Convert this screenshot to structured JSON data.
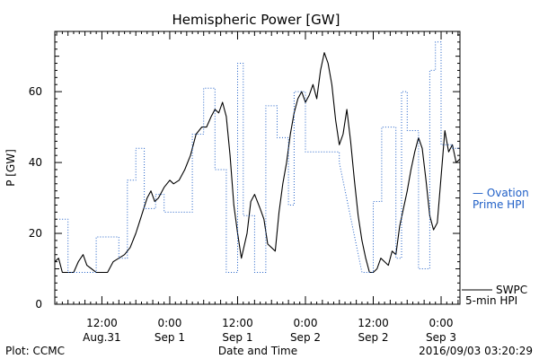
{
  "chart_data": {
    "type": "line",
    "title": "Hemispheric Power [GW]",
    "xlabel": "Date and Time",
    "ylabel": "P [GW]",
    "ylim": [
      0,
      77
    ],
    "y_ticks": [
      0,
      20,
      40,
      60
    ],
    "x_ticks": [
      {
        "time": "2016-08-31 12:00",
        "label": "12:00",
        "date": "Aug.31"
      },
      {
        "time": "2016-09-01 00:00",
        "label": "0:00",
        "date": "Sep 1"
      },
      {
        "time": "2016-09-01 12:00",
        "label": "12:00",
        "date": "Sep 1"
      },
      {
        "time": "2016-09-02 00:00",
        "label": "0:00",
        "date": "Sep 2"
      },
      {
        "time": "2016-09-02 12:00",
        "label": "12:00",
        "date": "Sep 2"
      },
      {
        "time": "2016-09-03 00:00",
        "label": "0:00",
        "date": "Sep 3"
      }
    ],
    "x_range": [
      "2016-08-31 03:40",
      "2016-09-03 03:20"
    ],
    "grid": false,
    "legend_placement": "right",
    "series": [
      {
        "name": "SWPC 5-min HPI",
        "legend_lines": [
          "SWPC",
          "5-min HPI"
        ],
        "color": "#000000",
        "style": "solid",
        "points": [
          [
            "2016-08-31 03:40",
            12
          ],
          [
            "2016-08-31 04:20",
            13
          ],
          [
            "2016-08-31 05:00",
            9
          ],
          [
            "2016-08-31 06:00",
            9
          ],
          [
            "2016-08-31 07:00",
            9
          ],
          [
            "2016-08-31 07:50",
            12
          ],
          [
            "2016-08-31 08:40",
            14
          ],
          [
            "2016-08-31 09:20",
            11
          ],
          [
            "2016-08-31 10:10",
            10
          ],
          [
            "2016-08-31 11:00",
            9
          ],
          [
            "2016-08-31 12:00",
            9
          ],
          [
            "2016-08-31 13:00",
            9
          ],
          [
            "2016-08-31 14:00",
            12
          ],
          [
            "2016-08-31 15:00",
            13
          ],
          [
            "2016-08-31 16:00",
            14
          ],
          [
            "2016-08-31 17:00",
            16
          ],
          [
            "2016-08-31 18:00",
            20
          ],
          [
            "2016-08-31 19:00",
            25
          ],
          [
            "2016-08-31 20:00",
            30
          ],
          [
            "2016-08-31 20:40",
            32
          ],
          [
            "2016-08-31 21:20",
            29
          ],
          [
            "2016-08-31 22:00",
            30
          ],
          [
            "2016-08-31 23:00",
            33
          ],
          [
            "2016-09-01 00:00",
            35
          ],
          [
            "2016-09-01 00:40",
            34
          ],
          [
            "2016-09-01 01:40",
            35
          ],
          [
            "2016-09-01 02:40",
            38
          ],
          [
            "2016-09-01 03:40",
            42
          ],
          [
            "2016-09-01 04:40",
            48
          ],
          [
            "2016-09-01 05:40",
            50
          ],
          [
            "2016-09-01 06:30",
            50
          ],
          [
            "2016-09-01 07:20",
            53
          ],
          [
            "2016-09-01 08:00",
            55
          ],
          [
            "2016-09-01 08:40",
            54
          ],
          [
            "2016-09-01 09:20",
            57
          ],
          [
            "2016-09-01 10:00",
            53
          ],
          [
            "2016-09-01 10:40",
            42
          ],
          [
            "2016-09-01 11:20",
            28
          ],
          [
            "2016-09-01 12:00",
            20
          ],
          [
            "2016-09-01 12:40",
            13
          ],
          [
            "2016-09-01 13:40",
            20
          ],
          [
            "2016-09-01 14:20",
            29
          ],
          [
            "2016-09-01 15:00",
            31
          ],
          [
            "2016-09-01 16:00",
            27
          ],
          [
            "2016-09-01 16:40",
            24
          ],
          [
            "2016-09-01 17:20",
            17
          ],
          [
            "2016-09-01 18:00",
            16
          ],
          [
            "2016-09-01 18:40",
            15
          ],
          [
            "2016-09-01 19:20",
            26
          ],
          [
            "2016-09-01 20:00",
            34
          ],
          [
            "2016-09-01 20:40",
            40
          ],
          [
            "2016-09-01 21:20",
            48
          ],
          [
            "2016-09-01 22:00",
            54
          ],
          [
            "2016-09-01 22:40",
            58
          ],
          [
            "2016-09-01 23:20",
            60
          ],
          [
            "2016-09-02 00:00",
            57
          ],
          [
            "2016-09-02 00:40",
            59
          ],
          [
            "2016-09-02 01:20",
            62
          ],
          [
            "2016-09-02 02:00",
            58
          ],
          [
            "2016-09-02 02:40",
            66
          ],
          [
            "2016-09-02 03:20",
            71
          ],
          [
            "2016-09-02 04:00",
            68
          ],
          [
            "2016-09-02 04:40",
            62
          ],
          [
            "2016-09-02 05:20",
            52
          ],
          [
            "2016-09-02 06:00",
            45
          ],
          [
            "2016-09-02 06:40",
            48
          ],
          [
            "2016-09-02 07:20",
            55
          ],
          [
            "2016-09-02 08:00",
            46
          ],
          [
            "2016-09-02 08:40",
            35
          ],
          [
            "2016-09-02 09:20",
            25
          ],
          [
            "2016-09-02 10:00",
            18
          ],
          [
            "2016-09-02 10:40",
            13
          ],
          [
            "2016-09-02 11:20",
            9
          ],
          [
            "2016-09-02 12:00",
            9
          ],
          [
            "2016-09-02 12:40",
            10
          ],
          [
            "2016-09-02 13:20",
            13
          ],
          [
            "2016-09-02 14:00",
            12
          ],
          [
            "2016-09-02 14:40",
            11
          ],
          [
            "2016-09-02 15:20",
            15
          ],
          [
            "2016-09-02 16:00",
            14
          ],
          [
            "2016-09-02 16:40",
            22
          ],
          [
            "2016-09-02 17:20",
            27
          ],
          [
            "2016-09-02 18:00",
            32
          ],
          [
            "2016-09-02 18:40",
            38
          ],
          [
            "2016-09-02 19:20",
            43
          ],
          [
            "2016-09-02 20:00",
            47
          ],
          [
            "2016-09-02 20:40",
            44
          ],
          [
            "2016-09-02 21:20",
            35
          ],
          [
            "2016-09-02 22:00",
            25
          ],
          [
            "2016-09-02 22:40",
            21
          ],
          [
            "2016-09-02 23:20",
            23
          ],
          [
            "2016-09-03 00:00",
            36
          ],
          [
            "2016-09-03 00:40",
            49
          ],
          [
            "2016-09-03 01:20",
            43
          ],
          [
            "2016-09-03 02:00",
            45
          ],
          [
            "2016-09-03 02:40",
            40
          ],
          [
            "2016-09-03 03:20",
            41
          ]
        ]
      },
      {
        "name": "Ovation Prime HPI",
        "legend_lines": [
          "— Ovation",
          "Prime HPI"
        ],
        "color": "#1f5fc7",
        "style": "dotted",
        "points": [
          [
            "2016-08-31 04:30",
            24
          ],
          [
            "2016-08-31 06:00",
            24
          ],
          [
            "2016-08-31 06:00",
            9
          ],
          [
            "2016-08-31 11:00",
            9
          ],
          [
            "2016-08-31 11:00",
            19
          ],
          [
            "2016-08-31 15:00",
            19
          ],
          [
            "2016-08-31 15:00",
            13
          ],
          [
            "2016-08-31 16:30",
            13
          ],
          [
            "2016-08-31 16:30",
            35
          ],
          [
            "2016-08-31 18:00",
            35
          ],
          [
            "2016-08-31 18:00",
            44
          ],
          [
            "2016-08-31 19:30",
            44
          ],
          [
            "2016-08-31 19:30",
            27
          ],
          [
            "2016-08-31 21:30",
            27
          ],
          [
            "2016-08-31 21:30",
            31
          ],
          [
            "2016-08-31 23:00",
            31
          ],
          [
            "2016-08-31 23:00",
            26
          ],
          [
            "2016-09-01 04:00",
            26
          ],
          [
            "2016-09-01 04:00",
            48
          ],
          [
            "2016-09-01 06:00",
            48
          ],
          [
            "2016-09-01 06:00",
            61
          ],
          [
            "2016-09-01 08:00",
            61
          ],
          [
            "2016-09-01 08:00",
            38
          ],
          [
            "2016-09-01 10:00",
            38
          ],
          [
            "2016-09-01 10:00",
            9
          ],
          [
            "2016-09-01 12:00",
            9
          ],
          [
            "2016-09-01 12:00",
            68
          ],
          [
            "2016-09-01 13:00",
            68
          ],
          [
            "2016-09-01 13:00",
            25
          ],
          [
            "2016-09-01 15:00",
            25
          ],
          [
            "2016-09-01 15:00",
            9
          ],
          [
            "2016-09-01 17:00",
            9
          ],
          [
            "2016-09-01 17:00",
            56
          ],
          [
            "2016-09-01 19:00",
            56
          ],
          [
            "2016-09-01 19:00",
            47
          ],
          [
            "2016-09-01 21:00",
            47
          ],
          [
            "2016-09-01 21:00",
            28
          ],
          [
            "2016-09-01 22:00",
            28
          ],
          [
            "2016-09-01 22:00",
            60
          ],
          [
            "2016-09-02 00:00",
            60
          ],
          [
            "2016-09-02 00:00",
            43
          ],
          [
            "2016-09-02 06:00",
            43
          ],
          [
            "2016-09-02 06:00",
            40
          ],
          [
            "2016-09-02 10:00",
            9
          ],
          [
            "2016-09-02 12:00",
            9
          ],
          [
            "2016-09-02 12:00",
            29
          ],
          [
            "2016-09-02 13:30",
            29
          ],
          [
            "2016-09-02 13:30",
            50
          ],
          [
            "2016-09-02 16:00",
            50
          ],
          [
            "2016-09-02 16:00",
            13
          ],
          [
            "2016-09-02 17:00",
            13
          ],
          [
            "2016-09-02 17:00",
            60
          ],
          [
            "2016-09-02 18:00",
            60
          ],
          [
            "2016-09-02 18:00",
            49
          ],
          [
            "2016-09-02 20:00",
            49
          ],
          [
            "2016-09-02 20:00",
            10
          ],
          [
            "2016-09-02 22:00",
            10
          ],
          [
            "2016-09-02 22:00",
            66
          ],
          [
            "2016-09-02 23:00",
            66
          ],
          [
            "2016-09-02 23:00",
            74
          ],
          [
            "2016-09-03 00:00",
            74
          ],
          [
            "2016-09-03 00:00",
            45
          ],
          [
            "2016-09-03 02:00",
            45
          ],
          [
            "2016-09-03 02:00",
            44
          ],
          [
            "2016-09-03 03:20",
            44
          ]
        ]
      }
    ]
  },
  "footer": {
    "plot_credit": "Plot: CCMC",
    "timestamp": "2016/09/03 03:20:29"
  }
}
